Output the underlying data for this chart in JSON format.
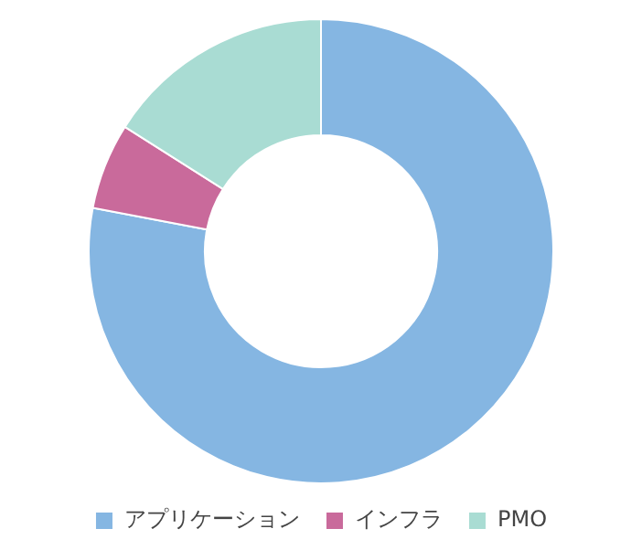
{
  "chart_data": {
    "type": "donut",
    "categories": [
      "アプリケーション",
      "インフラ",
      "PMO"
    ],
    "values": [
      78,
      6,
      16
    ],
    "colors": [
      "#85b6e2",
      "#c96a9b",
      "#a9dcd3"
    ],
    "legend": "bottom"
  }
}
